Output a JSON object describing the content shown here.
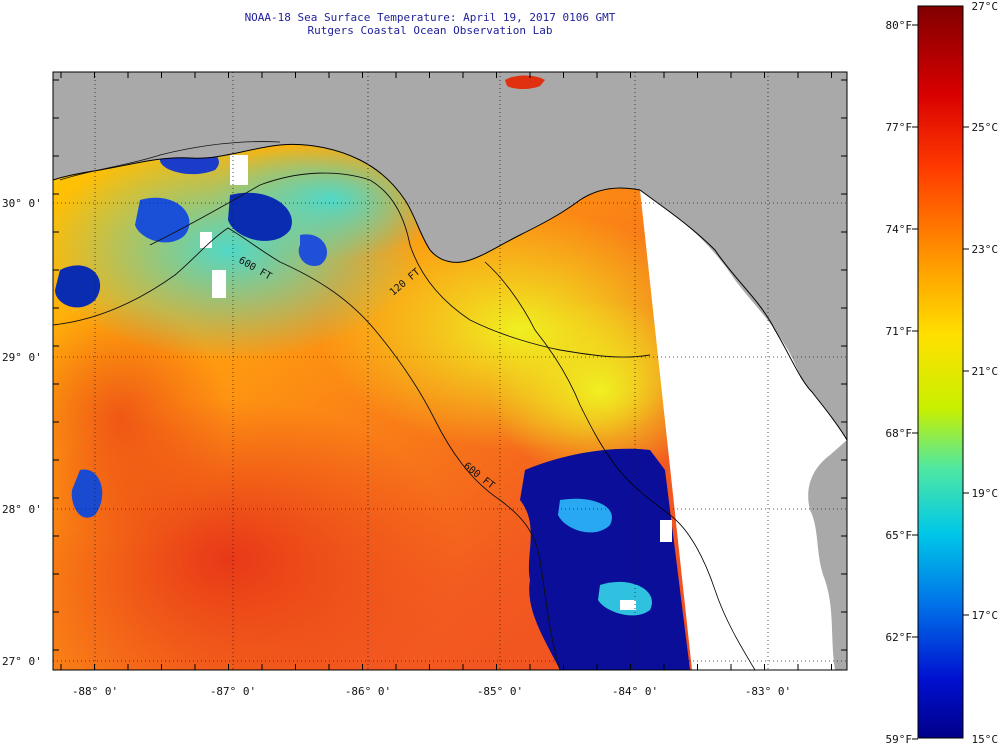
{
  "header": {
    "title": "NOAA-18 Sea Surface Temperature:  April 19, 2017 0106 GMT",
    "subtitle": "Rutgers Coastal Ocean Observation Lab"
  },
  "axes": {
    "lat_labels": [
      "30° 0'",
      "29° 0'",
      "28° 0'",
      "27° 0'"
    ],
    "lon_labels": [
      "-88° 0'",
      "-87° 0'",
      "-86° 0'",
      "-85° 0'",
      "-84° 0'",
      "-83° 0'"
    ]
  },
  "contours": {
    "c1": "600 FT",
    "c2": "120 FT",
    "c3": "600 FT"
  },
  "colorbar": {
    "fahrenheit": [
      "80°F",
      "77°F",
      "74°F",
      "71°F",
      "68°F",
      "65°F",
      "62°F",
      "59°F"
    ],
    "celsius": [
      "27°C",
      "25°C",
      "23°C",
      "21°C",
      "19°C",
      "17°C",
      "15°C"
    ],
    "colors": [
      "#8b0000",
      "#e01010",
      "#ff6a00",
      "#ffd21a",
      "#d9f020",
      "#40e0c0",
      "#1aa0f0",
      "#0030e0",
      "#000090"
    ]
  },
  "colors": {
    "land": "#a9a9a9",
    "warm_sst": "#f2682a",
    "cold_sst": "#0a1ea6"
  }
}
